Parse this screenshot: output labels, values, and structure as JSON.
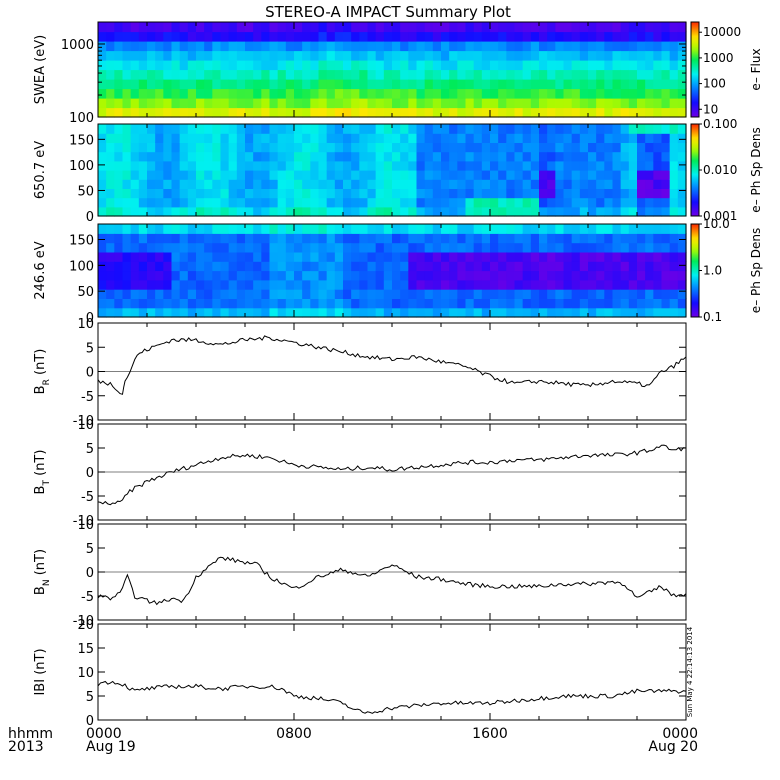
{
  "title": "STEREO-A IMPACT Summary Plot",
  "footer": {
    "left_line1": "hhmm",
    "left_line2": "2013",
    "x_ticks": [
      {
        "hour": 0,
        "line1": "0000",
        "line2": "Aug 19"
      },
      {
        "hour": 8,
        "line1": "0800",
        "line2": ""
      },
      {
        "hour": 16,
        "line1": "1600",
        "line2": ""
      },
      {
        "hour": 24,
        "line1": "0000",
        "line2": "Aug 20"
      }
    ],
    "timestamp": "Sun May  4 22:14:13 2014"
  },
  "chart_data": [
    {
      "type": "heatmap",
      "id": "swea",
      "ylabel": "SWEA (eV)",
      "ylog": true,
      "ylim": [
        100,
        2000
      ],
      "yticks": [
        {
          "v": 1000,
          "label": "1000"
        },
        {
          "v": 100,
          "label": "100"
        }
      ],
      "colorbar": {
        "title": "e– Flux",
        "log": true,
        "range": [
          5,
          25000
        ],
        "ticks": [
          {
            "v": 10000,
            "label": "10000"
          },
          {
            "v": 1000,
            "label": "1000"
          },
          {
            "v": 100,
            "label": "100"
          },
          {
            "v": 10,
            "label": "10"
          }
        ]
      }
    },
    {
      "type": "heatmap",
      "id": "pad650",
      "ylabel": "650.7 eV",
      "ylim": [
        0,
        180
      ],
      "yticks": [
        {
          "v": 150,
          "label": "150"
        },
        {
          "v": 100,
          "label": "100"
        },
        {
          "v": 50,
          "label": "50"
        },
        {
          "v": 0,
          "label": "0"
        }
      ],
      "colorbar": {
        "title": "e– Ph Sp Dens",
        "log": true,
        "range": [
          0.001,
          0.1
        ],
        "ticks": [
          {
            "v": 0.1,
            "label": "0.100"
          },
          {
            "v": 0.01,
            "label": "0.010"
          },
          {
            "v": 0.001,
            "label": "0.001"
          }
        ]
      }
    },
    {
      "type": "heatmap",
      "id": "pad246",
      "ylabel": "246.6 eV",
      "ylim": [
        0,
        180
      ],
      "yticks": [
        {
          "v": 150,
          "label": "150"
        },
        {
          "v": 100,
          "label": "100"
        },
        {
          "v": 50,
          "label": "50"
        },
        {
          "v": 0,
          "label": "0"
        }
      ],
      "colorbar": {
        "title": "e– Ph Sp Dens",
        "log": true,
        "range": [
          0.1,
          10
        ],
        "ticks": [
          {
            "v": 10,
            "label": "10.0"
          },
          {
            "v": 1,
            "label": "1.0"
          },
          {
            "v": 0.1,
            "label": "0.1"
          }
        ]
      }
    },
    {
      "type": "line",
      "id": "br",
      "ylabel": "B",
      "ylabel_sub": "R",
      "ylabel_unit": "(nT)",
      "ylim": [
        -10,
        10
      ],
      "yticks": [
        {
          "v": 10,
          "label": "10"
        },
        {
          "v": 5,
          "label": "5"
        },
        {
          "v": 0,
          "label": "0"
        },
        {
          "v": -5,
          "label": "-5"
        },
        {
          "v": -10,
          "label": "-10"
        }
      ],
      "x": [
        0,
        0.5,
        1,
        1.1,
        1.4,
        1.6,
        2,
        2.5,
        3,
        4,
        5,
        6,
        7,
        8,
        9,
        10,
        11,
        12,
        13,
        14,
        15,
        16,
        17,
        18,
        19,
        20,
        21,
        22,
        22.5,
        23,
        23.3,
        23.6,
        24
      ],
      "y": [
        -2,
        -2.5,
        -4.5,
        -2,
        1,
        3.5,
        4.5,
        5.5,
        6.5,
        6.5,
        5.5,
        6.5,
        7,
        6,
        5,
        4,
        3,
        2.5,
        3,
        2,
        1,
        -1,
        -2.5,
        -2,
        -2.5,
        -3,
        -2,
        -2.5,
        -3,
        0,
        0.5,
        1.5,
        3
      ]
    },
    {
      "type": "line",
      "id": "bt",
      "ylabel": "B",
      "ylabel_sub": "T",
      "ylabel_unit": "(nT)",
      "ylim": [
        -10,
        10
      ],
      "yticks": [
        {
          "v": 10,
          "label": "10"
        },
        {
          "v": 5,
          "label": "5"
        },
        {
          "v": 0,
          "label": "0"
        },
        {
          "v": -5,
          "label": "-5"
        },
        {
          "v": -10,
          "label": "-10"
        }
      ],
      "x": [
        0,
        0.5,
        0.9,
        1.3,
        2,
        3,
        4,
        5,
        6,
        7,
        8,
        9,
        10,
        11,
        12,
        13,
        14,
        15,
        16,
        17,
        18,
        19,
        20,
        21,
        22,
        22.5,
        23,
        23.5,
        24
      ],
      "y": [
        -6.5,
        -6.5,
        -6.5,
        -4,
        -2,
        0,
        1.5,
        3,
        3.5,
        3,
        1.5,
        1,
        0.5,
        1,
        0.5,
        1,
        1.5,
        2,
        2,
        2.5,
        2.5,
        3,
        3.5,
        3.5,
        4,
        4.5,
        5.5,
        4.5,
        5
      ]
    },
    {
      "type": "line",
      "id": "bn",
      "ylabel": "B",
      "ylabel_sub": "N",
      "ylabel_unit": "(nT)",
      "ylim": [
        -10,
        10
      ],
      "yticks": [
        {
          "v": 10,
          "label": "10"
        },
        {
          "v": 5,
          "label": "5"
        },
        {
          "v": 0,
          "label": "0"
        },
        {
          "v": -5,
          "label": "-5"
        },
        {
          "v": -10,
          "label": "-10"
        }
      ],
      "x": [
        0,
        0.5,
        0.9,
        1.2,
        1.5,
        2,
        2.5,
        3,
        3.5,
        4,
        5,
        6,
        6.5,
        7,
        8,
        9,
        10,
        11,
        12,
        13,
        14,
        15,
        16,
        17,
        18,
        19,
        20,
        21,
        21.5,
        22,
        23,
        23.5,
        24
      ],
      "y": [
        -5,
        -5.5,
        -4.5,
        -1,
        -5,
        -6,
        -6.5,
        -5.5,
        -6,
        -1,
        3,
        2,
        1.5,
        -1,
        -3.5,
        -1,
        0.5,
        -1,
        1.5,
        -1,
        -1.5,
        -2.5,
        -3,
        -3,
        -3,
        -2.5,
        -2.5,
        -2,
        -2.5,
        -5.5,
        -3,
        -5,
        -4.5
      ]
    },
    {
      "type": "line",
      "id": "bmag",
      "ylabel": "IBI",
      "ylabel_sub": "",
      "ylabel_unit": "(nT)",
      "ylim": [
        0,
        20
      ],
      "yticks": [
        {
          "v": 20,
          "label": "20"
        },
        {
          "v": 15,
          "label": "15"
        },
        {
          "v": 10,
          "label": "10"
        },
        {
          "v": 5,
          "label": "5"
        },
        {
          "v": 0,
          "label": "0"
        }
      ],
      "x": [
        0,
        0.5,
        1,
        1.5,
        2,
        3,
        4,
        5,
        6,
        7,
        7.5,
        8,
        9,
        10,
        10.5,
        11,
        11.5,
        12,
        13,
        14,
        15,
        16,
        17,
        18,
        19,
        20,
        21,
        22,
        23,
        24
      ],
      "y": [
        7.5,
        8,
        7.5,
        6,
        6.5,
        7,
        7,
        6.5,
        7,
        7,
        6.5,
        5,
        4.5,
        3.5,
        2,
        1.5,
        2,
        2.5,
        3,
        3.5,
        3.5,
        3.5,
        4,
        4.5,
        5,
        5,
        5,
        6,
        6,
        6
      ]
    }
  ]
}
